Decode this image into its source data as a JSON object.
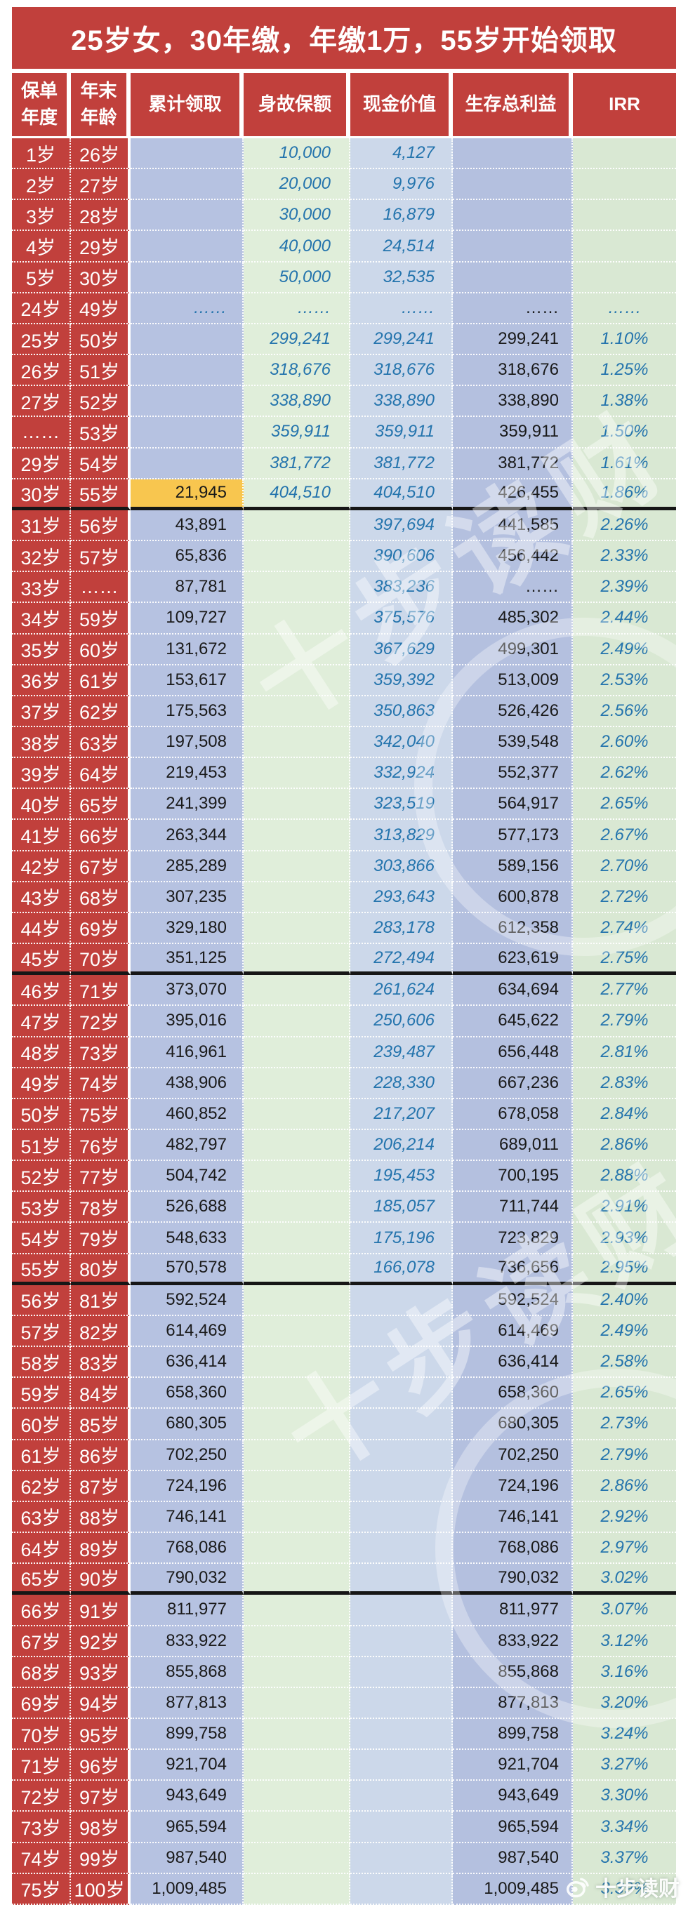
{
  "colors": {
    "red": "#c1403c",
    "col_cumulative_bg": "#b6c2e1",
    "col_death_bg": "#e0eeda",
    "col_cash_bg": "#ccd8ea",
    "col_total_bg": "#b4c0df",
    "col_irr_bg": "#d9e8d3",
    "highlight": "#f8c64f",
    "num_blue": "#2474ad",
    "num_black": "#1a1a1a"
  },
  "watermark": {
    "brand": "十步读财"
  },
  "chart_data": {
    "type": "table",
    "title": "25岁女，30年缴，年缴1万，55岁开始领取",
    "columns": [
      "保单\n年度",
      "年末\n年龄",
      "累计领取",
      "身故保额",
      "现金价值",
      "生存总利益",
      "IRR"
    ],
    "section_break_row_indexes": [
      11,
      26,
      36,
      46
    ],
    "highlight": {
      "row_index": 11,
      "col_index": 2
    },
    "rows": [
      [
        "1岁",
        "26岁",
        "",
        "10,000",
        "4,127",
        "",
        ""
      ],
      [
        "2岁",
        "27岁",
        "",
        "20,000",
        "9,976",
        "",
        ""
      ],
      [
        "3岁",
        "28岁",
        "",
        "30,000",
        "16,879",
        "",
        ""
      ],
      [
        "4岁",
        "29岁",
        "",
        "40,000",
        "24,514",
        "",
        ""
      ],
      [
        "5岁",
        "30岁",
        "",
        "50,000",
        "32,535",
        "",
        ""
      ],
      [
        "24岁",
        "49岁",
        "……",
        "……",
        "……",
        "……",
        "……"
      ],
      [
        "25岁",
        "50岁",
        "",
        "299,241",
        "299,241",
        "299,241",
        "1.10%"
      ],
      [
        "26岁",
        "51岁",
        "",
        "318,676",
        "318,676",
        "318,676",
        "1.25%"
      ],
      [
        "27岁",
        "52岁",
        "",
        "338,890",
        "338,890",
        "338,890",
        "1.38%"
      ],
      [
        "……",
        "53岁",
        "",
        "359,911",
        "359,911",
        "359,911",
        "1.50%"
      ],
      [
        "29岁",
        "54岁",
        "",
        "381,772",
        "381,772",
        "381,772",
        "1.61%"
      ],
      [
        "30岁",
        "55岁",
        "21,945",
        "404,510",
        "404,510",
        "426,455",
        "1.86%"
      ],
      [
        "31岁",
        "56岁",
        "43,891",
        "",
        "397,694",
        "441,585",
        "2.26%"
      ],
      [
        "32岁",
        "57岁",
        "65,836",
        "",
        "390,606",
        "456,442",
        "2.33%"
      ],
      [
        "33岁",
        "……",
        "87,781",
        "",
        "383,236",
        "……",
        "2.39%"
      ],
      [
        "34岁",
        "59岁",
        "109,727",
        "",
        "375,576",
        "485,302",
        "2.44%"
      ],
      [
        "35岁",
        "60岁",
        "131,672",
        "",
        "367,629",
        "499,301",
        "2.49%"
      ],
      [
        "36岁",
        "61岁",
        "153,617",
        "",
        "359,392",
        "513,009",
        "2.53%"
      ],
      [
        "37岁",
        "62岁",
        "175,563",
        "",
        "350,863",
        "526,426",
        "2.56%"
      ],
      [
        "38岁",
        "63岁",
        "197,508",
        "",
        "342,040",
        "539,548",
        "2.60%"
      ],
      [
        "39岁",
        "64岁",
        "219,453",
        "",
        "332,924",
        "552,377",
        "2.62%"
      ],
      [
        "40岁",
        "65岁",
        "241,399",
        "",
        "323,519",
        "564,917",
        "2.65%"
      ],
      [
        "41岁",
        "66岁",
        "263,344",
        "",
        "313,829",
        "577,173",
        "2.67%"
      ],
      [
        "42岁",
        "67岁",
        "285,289",
        "",
        "303,866",
        "589,156",
        "2.70%"
      ],
      [
        "43岁",
        "68岁",
        "307,235",
        "",
        "293,643",
        "600,878",
        "2.72%"
      ],
      [
        "44岁",
        "69岁",
        "329,180",
        "",
        "283,178",
        "612,358",
        "2.74%"
      ],
      [
        "45岁",
        "70岁",
        "351,125",
        "",
        "272,494",
        "623,619",
        "2.75%"
      ],
      [
        "46岁",
        "71岁",
        "373,070",
        "",
        "261,624",
        "634,694",
        "2.77%"
      ],
      [
        "47岁",
        "72岁",
        "395,016",
        "",
        "250,606",
        "645,622",
        "2.79%"
      ],
      [
        "48岁",
        "73岁",
        "416,961",
        "",
        "239,487",
        "656,448",
        "2.81%"
      ],
      [
        "49岁",
        "74岁",
        "438,906",
        "",
        "228,330",
        "667,236",
        "2.83%"
      ],
      [
        "50岁",
        "75岁",
        "460,852",
        "",
        "217,207",
        "678,058",
        "2.84%"
      ],
      [
        "51岁",
        "76岁",
        "482,797",
        "",
        "206,214",
        "689,011",
        "2.86%"
      ],
      [
        "52岁",
        "77岁",
        "504,742",
        "",
        "195,453",
        "700,195",
        "2.88%"
      ],
      [
        "53岁",
        "78岁",
        "526,688",
        "",
        "185,057",
        "711,744",
        "2.91%"
      ],
      [
        "54岁",
        "79岁",
        "548,633",
        "",
        "175,196",
        "723,829",
        "2.93%"
      ],
      [
        "55岁",
        "80岁",
        "570,578",
        "",
        "166,078",
        "736,656",
        "2.95%"
      ],
      [
        "56岁",
        "81岁",
        "592,524",
        "",
        "",
        "592,524",
        "2.40%"
      ],
      [
        "57岁",
        "82岁",
        "614,469",
        "",
        "",
        "614,469",
        "2.49%"
      ],
      [
        "58岁",
        "83岁",
        "636,414",
        "",
        "",
        "636,414",
        "2.58%"
      ],
      [
        "59岁",
        "84岁",
        "658,360",
        "",
        "",
        "658,360",
        "2.65%"
      ],
      [
        "60岁",
        "85岁",
        "680,305",
        "",
        "",
        "680,305",
        "2.73%"
      ],
      [
        "61岁",
        "86岁",
        "702,250",
        "",
        "",
        "702,250",
        "2.79%"
      ],
      [
        "62岁",
        "87岁",
        "724,196",
        "",
        "",
        "724,196",
        "2.86%"
      ],
      [
        "63岁",
        "88岁",
        "746,141",
        "",
        "",
        "746,141",
        "2.92%"
      ],
      [
        "64岁",
        "89岁",
        "768,086",
        "",
        "",
        "768,086",
        "2.97%"
      ],
      [
        "65岁",
        "90岁",
        "790,032",
        "",
        "",
        "790,032",
        "3.02%"
      ],
      [
        "66岁",
        "91岁",
        "811,977",
        "",
        "",
        "811,977",
        "3.07%"
      ],
      [
        "67岁",
        "92岁",
        "833,922",
        "",
        "",
        "833,922",
        "3.12%"
      ],
      [
        "68岁",
        "93岁",
        "855,868",
        "",
        "",
        "855,868",
        "3.16%"
      ],
      [
        "69岁",
        "94岁",
        "877,813",
        "",
        "",
        "877,813",
        "3.20%"
      ],
      [
        "70岁",
        "95岁",
        "899,758",
        "",
        "",
        "899,758",
        "3.24%"
      ],
      [
        "71岁",
        "96岁",
        "921,704",
        "",
        "",
        "921,704",
        "3.27%"
      ],
      [
        "72岁",
        "97岁",
        "943,649",
        "",
        "",
        "943,649",
        "3.30%"
      ],
      [
        "73岁",
        "98岁",
        "965,594",
        "",
        "",
        "965,594",
        "3.34%"
      ],
      [
        "74岁",
        "99岁",
        "987,540",
        "",
        "",
        "987,540",
        "3.37%"
      ],
      [
        "75岁",
        "100岁",
        "1,009,485",
        "",
        "",
        "1,009,485",
        "3.39%"
      ]
    ]
  }
}
